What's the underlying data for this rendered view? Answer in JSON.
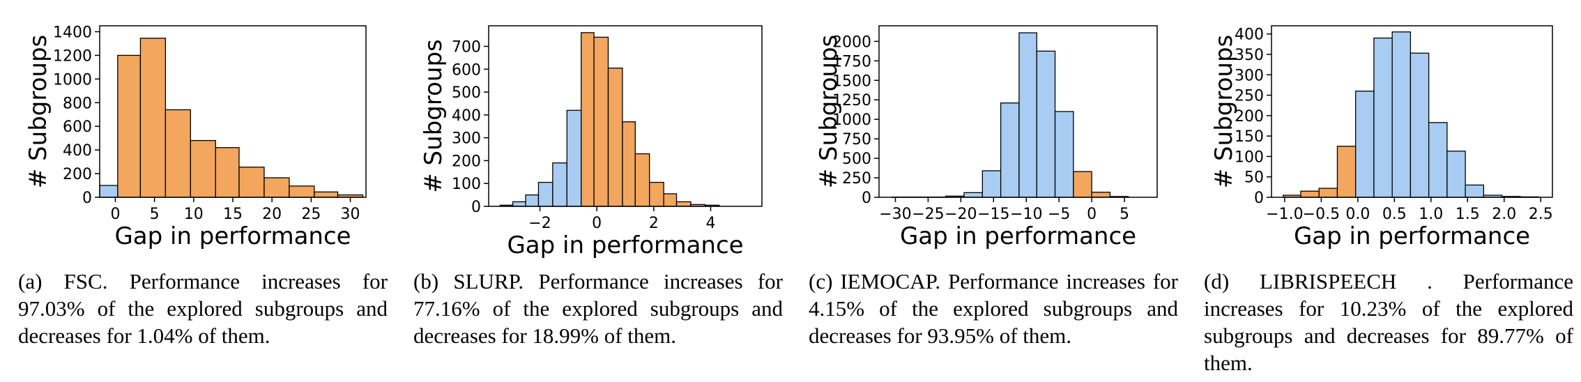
{
  "colors": {
    "increase": "#f2a65e",
    "decrease": "#a9cdf2",
    "edge": "#000000"
  },
  "chart_data": [
    {
      "type": "bar",
      "ylabel": "# Subgroups",
      "xlabel": "Gap in performance",
      "xlim": [
        -2,
        32
      ],
      "ylim": [
        0,
        1450
      ],
      "xticks": [
        0,
        5,
        10,
        15,
        20,
        25,
        30
      ],
      "yticks": [
        0,
        200,
        400,
        600,
        800,
        1000,
        1200,
        1400
      ],
      "bins": [
        {
          "x0": -2.0,
          "x1": 0.3,
          "value": 100,
          "group": "decrease"
        },
        {
          "x0": 0.3,
          "x1": 3.2,
          "value": 1200,
          "group": "increase"
        },
        {
          "x0": 3.2,
          "x1": 6.4,
          "value": 1345,
          "group": "increase"
        },
        {
          "x0": 6.4,
          "x1": 9.6,
          "value": 740,
          "group": "increase"
        },
        {
          "x0": 9.6,
          "x1": 12.8,
          "value": 480,
          "group": "increase"
        },
        {
          "x0": 12.8,
          "x1": 15.8,
          "value": 420,
          "group": "increase"
        },
        {
          "x0": 15.8,
          "x1": 19.0,
          "value": 255,
          "group": "increase"
        },
        {
          "x0": 19.0,
          "x1": 22.2,
          "value": 165,
          "group": "increase"
        },
        {
          "x0": 22.2,
          "x1": 25.4,
          "value": 95,
          "group": "increase"
        },
        {
          "x0": 25.4,
          "x1": 28.4,
          "value": 45,
          "group": "increase"
        },
        {
          "x0": 28.4,
          "x1": 31.6,
          "value": 20,
          "group": "increase"
        }
      ]
    },
    {
      "type": "bar",
      "ylabel": "# Subgroups",
      "xlabel": "Gap in performance",
      "xlim": [
        -3.8,
        5.8
      ],
      "ylim": [
        0,
        790
      ],
      "xticks": [
        -2,
        0,
        2,
        4
      ],
      "yticks": [
        0,
        100,
        200,
        300,
        400,
        500,
        600,
        700
      ],
      "bins": [
        {
          "x0": -3.4,
          "x1": -2.95,
          "value": 5,
          "group": "decrease"
        },
        {
          "x0": -2.95,
          "x1": -2.5,
          "value": 20,
          "group": "decrease"
        },
        {
          "x0": -2.5,
          "x1": -2.05,
          "value": 50,
          "group": "decrease"
        },
        {
          "x0": -2.05,
          "x1": -1.55,
          "value": 105,
          "group": "decrease"
        },
        {
          "x0": -1.55,
          "x1": -1.05,
          "value": 190,
          "group": "decrease"
        },
        {
          "x0": -1.05,
          "x1": -0.55,
          "value": 420,
          "group": "decrease"
        },
        {
          "x0": -0.55,
          "x1": -0.1,
          "value": 760,
          "group": "increase"
        },
        {
          "x0": -0.1,
          "x1": 0.4,
          "value": 740,
          "group": "increase"
        },
        {
          "x0": 0.4,
          "x1": 0.9,
          "value": 605,
          "group": "increase"
        },
        {
          "x0": 0.9,
          "x1": 1.35,
          "value": 370,
          "group": "increase"
        },
        {
          "x0": 1.35,
          "x1": 1.85,
          "value": 230,
          "group": "increase"
        },
        {
          "x0": 1.85,
          "x1": 2.35,
          "value": 105,
          "group": "increase"
        },
        {
          "x0": 2.35,
          "x1": 2.8,
          "value": 55,
          "group": "increase"
        },
        {
          "x0": 2.8,
          "x1": 3.3,
          "value": 20,
          "group": "increase"
        },
        {
          "x0": 3.3,
          "x1": 3.8,
          "value": 8,
          "group": "increase"
        },
        {
          "x0": 3.8,
          "x1": 4.3,
          "value": 5,
          "group": "increase"
        }
      ]
    },
    {
      "type": "bar",
      "ylabel": "# Subgroups",
      "xlabel": "Gap in performance",
      "xlim": [
        -32.5,
        10
      ],
      "ylim": [
        0,
        2200
      ],
      "xticks": [
        -30,
        -25,
        -20,
        -15,
        -10,
        -5,
        0,
        5
      ],
      "yticks": [
        0,
        250,
        500,
        750,
        1000,
        1250,
        1500,
        1750,
        2000
      ],
      "bins": [
        {
          "x0": -30.5,
          "x1": -27.7,
          "value": 3,
          "group": "decrease"
        },
        {
          "x0": -27.7,
          "x1": -25.0,
          "value": 3,
          "group": "decrease"
        },
        {
          "x0": -25.0,
          "x1": -22.3,
          "value": 3,
          "group": "decrease"
        },
        {
          "x0": -22.3,
          "x1": -19.5,
          "value": 15,
          "group": "decrease"
        },
        {
          "x0": -19.5,
          "x1": -16.7,
          "value": 60,
          "group": "decrease"
        },
        {
          "x0": -16.7,
          "x1": -13.9,
          "value": 340,
          "group": "decrease"
        },
        {
          "x0": -13.9,
          "x1": -11.1,
          "value": 1210,
          "group": "decrease"
        },
        {
          "x0": -11.1,
          "x1": -8.4,
          "value": 2110,
          "group": "decrease"
        },
        {
          "x0": -8.4,
          "x1": -5.6,
          "value": 1875,
          "group": "decrease"
        },
        {
          "x0": -5.6,
          "x1": -2.8,
          "value": 1100,
          "group": "decrease"
        },
        {
          "x0": -2.8,
          "x1": 0.0,
          "value": 330,
          "group": "increase"
        },
        {
          "x0": 0.0,
          "x1": 2.8,
          "value": 65,
          "group": "increase"
        },
        {
          "x0": 2.8,
          "x1": 5.6,
          "value": 10,
          "group": "increase"
        }
      ]
    },
    {
      "type": "bar",
      "ylabel": "# Subgroups",
      "xlabel": "Gap in performance",
      "xlim": [
        -1.18,
        2.66
      ],
      "ylim": [
        0,
        420
      ],
      "xticks": [
        -1.0,
        -0.5,
        0.0,
        0.5,
        1.0,
        1.5,
        2.0,
        2.5
      ],
      "xtick_labels": [
        "−1.0",
        "−0.5",
        "0.0",
        "0.5",
        "1.0",
        "1.5",
        "2.0",
        "2.5"
      ],
      "yticks": [
        0,
        50,
        100,
        150,
        200,
        250,
        300,
        350,
        400
      ],
      "bins": [
        {
          "x0": -1.02,
          "x1": -0.78,
          "value": 5,
          "group": "increase"
        },
        {
          "x0": -0.78,
          "x1": -0.53,
          "value": 15,
          "group": "increase"
        },
        {
          "x0": -0.53,
          "x1": -0.28,
          "value": 22,
          "group": "increase"
        },
        {
          "x0": -0.28,
          "x1": -0.03,
          "value": 125,
          "group": "increase"
        },
        {
          "x0": -0.03,
          "x1": 0.22,
          "value": 260,
          "group": "decrease"
        },
        {
          "x0": 0.22,
          "x1": 0.47,
          "value": 390,
          "group": "decrease"
        },
        {
          "x0": 0.47,
          "x1": 0.72,
          "value": 405,
          "group": "decrease"
        },
        {
          "x0": 0.72,
          "x1": 0.97,
          "value": 353,
          "group": "decrease"
        },
        {
          "x0": 0.97,
          "x1": 1.22,
          "value": 183,
          "group": "decrease"
        },
        {
          "x0": 1.22,
          "x1": 1.47,
          "value": 113,
          "group": "decrease"
        },
        {
          "x0": 1.47,
          "x1": 1.72,
          "value": 30,
          "group": "decrease"
        },
        {
          "x0": 1.72,
          "x1": 1.97,
          "value": 5,
          "group": "decrease"
        },
        {
          "x0": 1.97,
          "x1": 2.22,
          "value": 2,
          "group": "decrease"
        },
        {
          "x0": 2.22,
          "x1": 2.47,
          "value": 1,
          "group": "decrease"
        }
      ]
    }
  ],
  "captions": [
    "(a) FSC.  Performance increases for 97.03% of the explored subgroups and decreases for 1.04% of them.",
    "(b) SLURP.  Performance increases for 77.16% of the explored subgroups and decreases for 18.99% of them.",
    "(c) IEMOCAP.   Performance increases for 4.15% of the explored subgroups and decreases for 93.95% of them.",
    "(d) LIBRISPEECH . Performance increases for 10.23% of the explored subgroups and decreases for 89.77% of them."
  ]
}
